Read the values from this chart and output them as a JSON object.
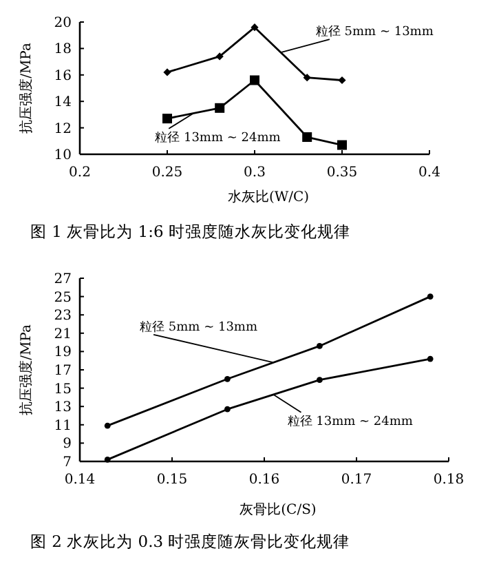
{
  "chart_data": [
    {
      "type": "line",
      "title": "图 1   灰骨比为 1:6 时强度随水灰比变化规律",
      "xlabel": "水灰比(W/C)",
      "ylabel": "抗压强度/MPa",
      "x": [
        0.25,
        0.28,
        0.3,
        0.33,
        0.35
      ],
      "xlim": [
        0.2,
        0.4
      ],
      "ylim": [
        10,
        20
      ],
      "xticks": [
        0.2,
        0.25,
        0.3,
        0.35,
        0.4
      ],
      "yticks": [
        10,
        12,
        14,
        16,
        18,
        20
      ],
      "marker": "diamond",
      "grid": false,
      "series": [
        {
          "name": "粒径 5mm ~ 13mm",
          "color": "#000000",
          "values": [
            16.2,
            17.4,
            19.6,
            15.8,
            15.6
          ]
        },
        {
          "name": "粒径 13mm ~ 24mm",
          "color": "#000000",
          "marker": "square",
          "values": [
            12.7,
            13.5,
            15.6,
            11.3,
            10.7
          ]
        }
      ]
    },
    {
      "type": "line",
      "title": "图 2   水灰比为 0.3 时强度随灰骨比变化规律",
      "xlabel": "灰骨比(C/S)",
      "ylabel": "抗压强度/MPa",
      "x": [
        0.143,
        0.156,
        0.166,
        0.178
      ],
      "xlim": [
        0.14,
        0.18
      ],
      "ylim": [
        7,
        27
      ],
      "xticks": [
        0.14,
        0.15,
        0.16,
        0.17,
        0.18
      ],
      "yticks": [
        7,
        9,
        11,
        13,
        15,
        17,
        19,
        21,
        23,
        25,
        27
      ],
      "marker": "circle",
      "grid": false,
      "series": [
        {
          "name": "粒径 5mm ~ 13mm",
          "color": "#000000",
          "values": [
            10.9,
            16.0,
            19.6,
            25.0
          ]
        },
        {
          "name": "粒径 13mm ~ 24mm",
          "color": "#000000",
          "values": [
            7.2,
            12.7,
            15.9,
            18.2
          ]
        }
      ]
    }
  ]
}
